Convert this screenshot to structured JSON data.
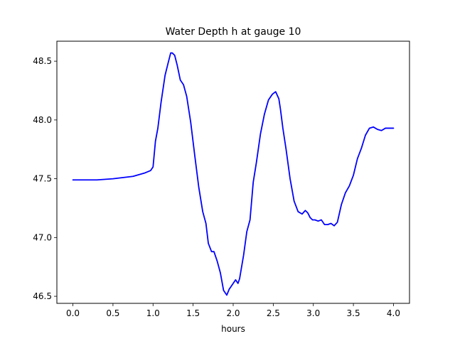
{
  "chart_data": {
    "type": "line",
    "title": "Water Depth h at gauge 10",
    "xlabel": "hours",
    "ylabel": "",
    "xlim": [
      -0.2,
      4.2
    ],
    "ylim": [
      46.44,
      48.67
    ],
    "grid": false,
    "x_ticks": [
      0.0,
      0.5,
      1.0,
      1.5,
      2.0,
      2.5,
      3.0,
      3.5,
      4.0
    ],
    "x_tick_labels": [
      "0.0",
      "0.5",
      "1.0",
      "1.5",
      "2.0",
      "2.5",
      "3.0",
      "3.5",
      "4.0"
    ],
    "y_ticks": [
      46.5,
      47.0,
      47.5,
      48.0,
      48.5
    ],
    "y_tick_labels": [
      "46.5",
      "47.0",
      "47.5",
      "48.0",
      "48.5"
    ],
    "series": [
      {
        "color": "#0000ff",
        "x": [
          0.0,
          0.3,
          0.5,
          0.75,
          0.9,
          0.97,
          1.0,
          1.03,
          1.06,
          1.1,
          1.15,
          1.19,
          1.22,
          1.24,
          1.27,
          1.3,
          1.34,
          1.38,
          1.42,
          1.47,
          1.52,
          1.57,
          1.62,
          1.66,
          1.69,
          1.73,
          1.76,
          1.8,
          1.84,
          1.88,
          1.92,
          1.95,
          1.97,
          2.0,
          2.03,
          2.06,
          2.08,
          2.1,
          2.13,
          2.17,
          2.21,
          2.25,
          2.29,
          2.34,
          2.39,
          2.44,
          2.49,
          2.53,
          2.57,
          2.59,
          2.62,
          2.66,
          2.71,
          2.76,
          2.81,
          2.86,
          2.9,
          2.93,
          2.96,
          2.99,
          3.02,
          3.06,
          3.1,
          3.14,
          3.18,
          3.22,
          3.26,
          3.3,
          3.35,
          3.4,
          3.45,
          3.5,
          3.55,
          3.6,
          3.65,
          3.7,
          3.75,
          3.8,
          3.85,
          3.9,
          3.95,
          4.0
        ],
        "y": [
          47.49,
          47.49,
          47.5,
          47.52,
          47.55,
          47.57,
          47.6,
          47.82,
          47.93,
          48.15,
          48.38,
          48.49,
          48.57,
          48.57,
          48.55,
          48.47,
          48.34,
          48.3,
          48.2,
          47.98,
          47.7,
          47.43,
          47.22,
          47.12,
          46.95,
          46.88,
          46.88,
          46.8,
          46.7,
          46.55,
          46.51,
          46.56,
          46.58,
          46.61,
          46.64,
          46.61,
          46.65,
          46.73,
          46.85,
          47.05,
          47.15,
          47.47,
          47.64,
          47.88,
          48.05,
          48.17,
          48.22,
          48.24,
          48.18,
          48.09,
          47.93,
          47.75,
          47.5,
          47.31,
          47.22,
          47.2,
          47.23,
          47.21,
          47.17,
          47.15,
          47.15,
          47.14,
          47.15,
          47.11,
          47.11,
          47.12,
          47.1,
          47.13,
          47.28,
          47.38,
          47.44,
          47.53,
          47.67,
          47.76,
          47.87,
          47.93,
          47.94,
          47.92,
          47.91,
          47.93,
          47.93,
          47.93
        ]
      }
    ]
  }
}
